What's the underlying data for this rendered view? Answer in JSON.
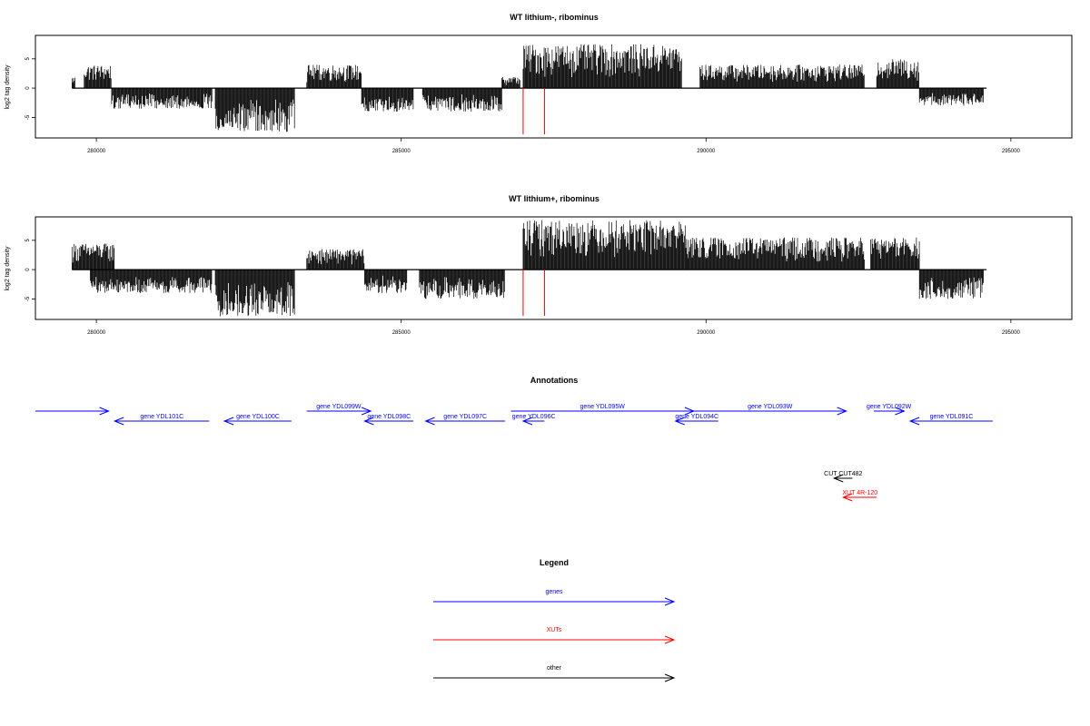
{
  "chart_data": [
    {
      "type": "bar",
      "title": "WT lithium-, ribominus",
      "ylabel": "log2 tag density",
      "xlabel": "",
      "x_ticks": [
        280000,
        285000,
        290000,
        295000
      ],
      "y_ticks": [
        -5,
        0,
        5
      ],
      "xlim": [
        279000,
        296000
      ],
      "ylim": [
        -8.5,
        9
      ],
      "markers_x": [
        287000,
        287350
      ],
      "signal_segments": [
        {
          "x_start": 279600,
          "x_end": 279650,
          "sign": 1,
          "max": 2
        },
        {
          "x_start": 279800,
          "x_end": 280250,
          "sign": 1,
          "max": 4
        },
        {
          "x_start": 280250,
          "x_end": 281900,
          "sign": -1,
          "max": 3.5
        },
        {
          "x_start": 281950,
          "x_end": 283250,
          "sign": -1,
          "max": 7.5
        },
        {
          "x_start": 283450,
          "x_end": 284350,
          "sign": 1,
          "max": 4
        },
        {
          "x_start": 284350,
          "x_end": 285200,
          "sign": -1,
          "max": 4
        },
        {
          "x_start": 285350,
          "x_end": 286650,
          "sign": -1,
          "max": 4
        },
        {
          "x_start": 286650,
          "x_end": 286950,
          "sign": 1,
          "max": 2
        },
        {
          "x_start": 287000,
          "x_end": 289600,
          "sign": 1,
          "max": 7.5
        },
        {
          "x_start": 289900,
          "x_end": 292600,
          "sign": 1,
          "max": 4
        },
        {
          "x_start": 292800,
          "x_end": 293500,
          "sign": 1,
          "max": 5
        },
        {
          "x_start": 293500,
          "x_end": 294550,
          "sign": -1,
          "max": 3
        }
      ]
    },
    {
      "type": "bar",
      "title": "WT lithium+, ribominus",
      "ylabel": "log2 tag density",
      "xlabel": "",
      "x_ticks": [
        280000,
        285000,
        290000,
        295000
      ],
      "y_ticks": [
        -5,
        0,
        5
      ],
      "xlim": [
        279000,
        296000
      ],
      "ylim": [
        -8.5,
        9
      ],
      "markers_x": [
        287000,
        287350
      ],
      "signal_segments": [
        {
          "x_start": 279600,
          "x_end": 280300,
          "sign": 1,
          "max": 4.5
        },
        {
          "x_start": 279900,
          "x_end": 281900,
          "sign": -1,
          "max": 4
        },
        {
          "x_start": 281950,
          "x_end": 283250,
          "sign": -1,
          "max": 8
        },
        {
          "x_start": 283450,
          "x_end": 284400,
          "sign": 1,
          "max": 3.5
        },
        {
          "x_start": 284400,
          "x_end": 285100,
          "sign": -1,
          "max": 4
        },
        {
          "x_start": 285300,
          "x_end": 286700,
          "sign": -1,
          "max": 5
        },
        {
          "x_start": 287000,
          "x_end": 289700,
          "sign": 1,
          "max": 8.5
        },
        {
          "x_start": 289700,
          "x_end": 292600,
          "sign": 1,
          "max": 5.5
        },
        {
          "x_start": 292700,
          "x_end": 293500,
          "sign": 1,
          "max": 5.5
        },
        {
          "x_start": 293500,
          "x_end": 294550,
          "sign": -1,
          "max": 5
        }
      ]
    }
  ],
  "annotations": {
    "title": "Annotations",
    "features": [
      {
        "label": "",
        "type": "gene",
        "strand": "+",
        "x_start": 279000,
        "x_end": 280200,
        "row": 0
      },
      {
        "label": "gene YDL101C",
        "type": "gene",
        "strand": "-",
        "x_start": 280300,
        "x_end": 281850,
        "row": 1
      },
      {
        "label": "gene YDL100C",
        "type": "gene",
        "strand": "-",
        "x_start": 282100,
        "x_end": 283200,
        "row": 1
      },
      {
        "label": "gene YDL099W",
        "type": "gene",
        "strand": "+",
        "x_start": 283450,
        "x_end": 284500,
        "row": 0
      },
      {
        "label": "gene YDL098C",
        "type": "gene",
        "strand": "-",
        "x_start": 284400,
        "x_end": 285200,
        "row": 1
      },
      {
        "label": "gene YDL097C",
        "type": "gene",
        "strand": "-",
        "x_start": 285400,
        "x_end": 286700,
        "row": 1
      },
      {
        "label": "gene YDL096C",
        "type": "gene",
        "strand": "-",
        "x_start": 287000,
        "x_end": 287350,
        "row": 1
      },
      {
        "label": "gene YDL095W",
        "type": "gene",
        "strand": "+",
        "x_start": 286800,
        "x_end": 289800,
        "row": 0
      },
      {
        "label": "gene YDL094C",
        "type": "gene",
        "strand": "-",
        "x_start": 289500,
        "x_end": 290200,
        "row": 1
      },
      {
        "label": "gene YDL093W",
        "type": "gene",
        "strand": "+",
        "x_start": 289800,
        "x_end": 292300,
        "row": 0
      },
      {
        "label": "gene YDL092W",
        "type": "gene",
        "strand": "+",
        "x_start": 292750,
        "x_end": 293250,
        "row": 0
      },
      {
        "label": "gene YDL091C",
        "type": "gene",
        "strand": "-",
        "x_start": 293350,
        "x_end": 294700,
        "row": 1
      },
      {
        "label": "CUT CUT482",
        "type": "other",
        "strand": "-",
        "x_start": 292100,
        "x_end": 292400,
        "row": 2
      },
      {
        "label": "XUT 4R-120",
        "type": "xut",
        "strand": "-",
        "x_start": 292250,
        "x_end": 292800,
        "row": 3
      }
    ]
  },
  "legend": {
    "title": "Legend",
    "items": [
      {
        "label": "genes",
        "color": "#0000ff"
      },
      {
        "label": "XUTs",
        "color": "#ff0000"
      },
      {
        "label": "other",
        "color": "#000000"
      }
    ]
  },
  "colors": {
    "gene": "#0000ff",
    "xut": "#ff0000",
    "other": "#000000",
    "marker": "#ff0000",
    "signal": "#000000"
  }
}
